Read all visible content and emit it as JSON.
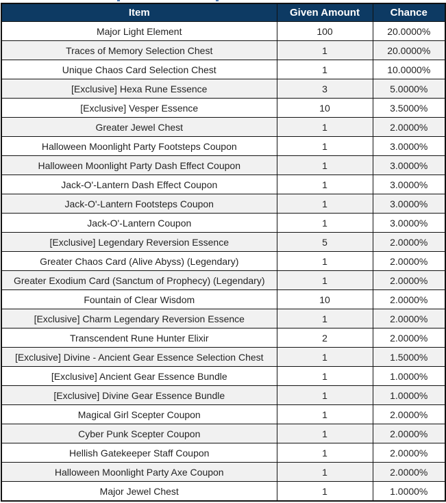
{
  "colors": {
    "header_background": "#0d3a63",
    "header_text": "#ffffff",
    "row_background": "#ffffff",
    "row_alt_background": "#f1f1f1",
    "cell_text": "#232323",
    "border": "#111111",
    "top_artifact_blue": "#4d7cb8"
  },
  "table": {
    "columns": [
      "Item",
      "Given Amount",
      "Chance"
    ],
    "rows": [
      {
        "item": "Major Light Element",
        "given_amount": "100",
        "chance": "20.0000%"
      },
      {
        "item": "Traces of Memory Selection Chest",
        "given_amount": "1",
        "chance": "20.0000%"
      },
      {
        "item": "Unique Chaos Card Selection Chest",
        "given_amount": "1",
        "chance": "10.0000%"
      },
      {
        "item": "[Exclusive] Hexa Rune Essence",
        "given_amount": "3",
        "chance": "5.0000%"
      },
      {
        "item": "[Exclusive] Vesper Essence",
        "given_amount": "10",
        "chance": "3.5000%"
      },
      {
        "item": "Greater Jewel Chest",
        "given_amount": "1",
        "chance": "2.0000%"
      },
      {
        "item": "Halloween Moonlight Party Footsteps Coupon",
        "given_amount": "1",
        "chance": "3.0000%"
      },
      {
        "item": "Halloween Moonlight Party Dash Effect Coupon",
        "given_amount": "1",
        "chance": "3.0000%"
      },
      {
        "item": "Jack-O'-Lantern Dash Effect Coupon",
        "given_amount": "1",
        "chance": "3.0000%"
      },
      {
        "item": "Jack-O'-Lantern Footsteps Coupon",
        "given_amount": "1",
        "chance": "3.0000%"
      },
      {
        "item": "Jack-O'-Lantern Coupon",
        "given_amount": "1",
        "chance": "3.0000%"
      },
      {
        "item": "[Exclusive] Legendary Reversion Essence",
        "given_amount": "5",
        "chance": "2.0000%"
      },
      {
        "item": "Greater Chaos Card (Alive Abyss) (Legendary)",
        "given_amount": "1",
        "chance": "2.0000%"
      },
      {
        "item": "Greater Exodium Card (Sanctum of Prophecy) (Legendary)",
        "given_amount": "1",
        "chance": "2.0000%"
      },
      {
        "item": "Fountain of Clear Wisdom",
        "given_amount": "10",
        "chance": "2.0000%"
      },
      {
        "item": "[Exclusive] Charm Legendary Reversion Essence",
        "given_amount": "1",
        "chance": "2.0000%"
      },
      {
        "item": "Transcendent Rune Hunter Elixir",
        "given_amount": "2",
        "chance": "2.0000%"
      },
      {
        "item": "[Exclusive] Divine - Ancient Gear Essence Selection Chest",
        "given_amount": "1",
        "chance": "1.5000%"
      },
      {
        "item": "[Exclusive] Ancient Gear Essence Bundle",
        "given_amount": "1",
        "chance": "1.0000%"
      },
      {
        "item": "[Exclusive] Divine Gear Essence Bundle",
        "given_amount": "1",
        "chance": "1.0000%"
      },
      {
        "item": "Magical Girl Scepter Coupon",
        "given_amount": "1",
        "chance": "2.0000%"
      },
      {
        "item": "Cyber Punk Scepter Coupon",
        "given_amount": "1",
        "chance": "2.0000%"
      },
      {
        "item": "Hellish Gatekeeper Staff Coupon",
        "given_amount": "1",
        "chance": "2.0000%"
      },
      {
        "item": "Halloween Moonlight Party Axe Coupon",
        "given_amount": "1",
        "chance": "2.0000%"
      },
      {
        "item": "Major Jewel Chest",
        "given_amount": "1",
        "chance": "1.0000%"
      }
    ]
  }
}
